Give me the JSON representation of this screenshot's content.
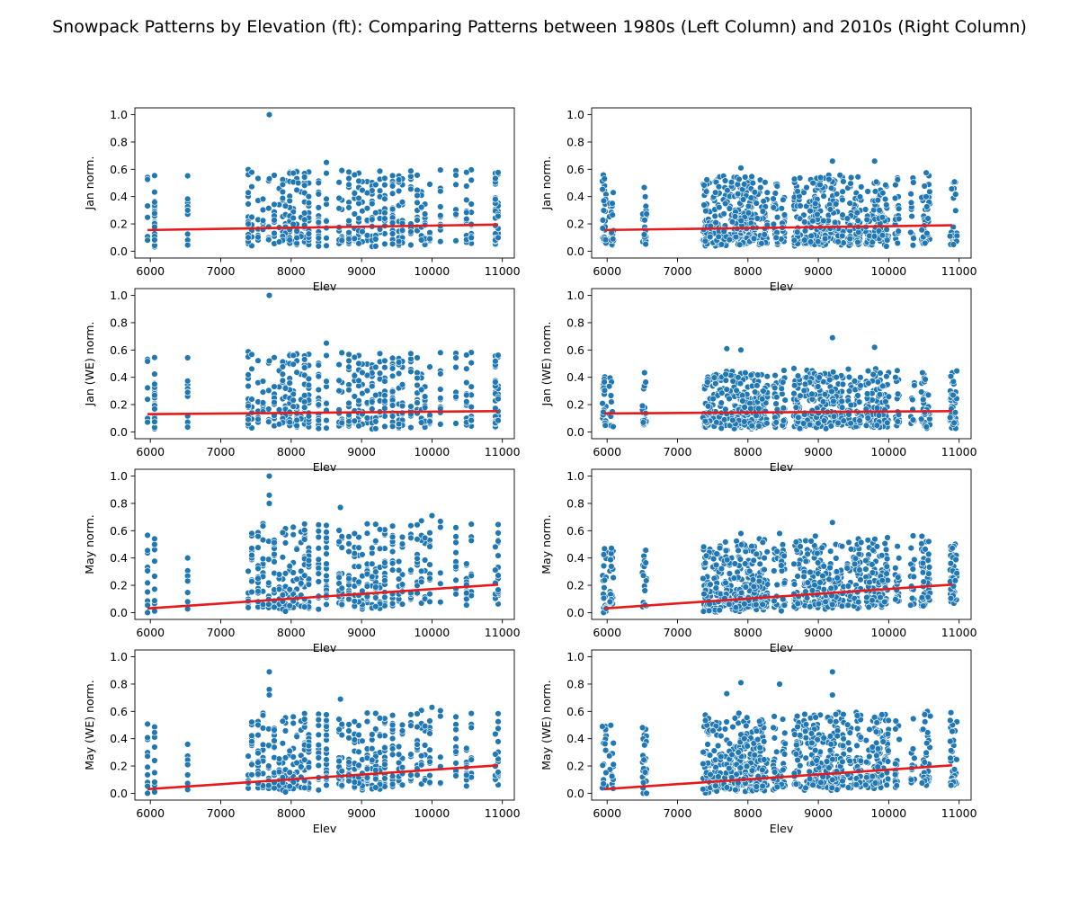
{
  "title": "Snowpack Patterns by Elevation (ft): Comparing Patterns between 1980s (Left Column) and 2010s (Right Column)",
  "colors": {
    "points": "#1f77b4",
    "fit_line": "#e41a1c",
    "point_edge": "#ffffff"
  },
  "chart_data": [
    {
      "id": "r0c0",
      "type": "scatter",
      "row": 0,
      "col": 0,
      "xlabel": "Elev",
      "ylabel": "Jan norm.",
      "xlim": [
        5780,
        11170
      ],
      "ylim": [
        -0.05,
        1.05
      ],
      "xticks": [
        "6000",
        "7000",
        "8000",
        "9000",
        "10000",
        "11000"
      ],
      "yticks": [
        "0.0",
        "0.2",
        "0.4",
        "0.6",
        "0.8",
        "1.0"
      ],
      "fit_line": [
        [
          5960,
          0.155
        ],
        [
          10940,
          0.195
        ]
      ],
      "n_points": 520,
      "seed": 11,
      "y_scale": 0.24,
      "y_cap": 0.66,
      "outliers": [
        [
          7690,
          1.0
        ],
        [
          7690,
          0.53
        ],
        [
          8500,
          0.65
        ],
        [
          8100,
          0.5
        ]
      ]
    },
    {
      "id": "r0c1",
      "type": "scatter",
      "row": 0,
      "col": 1,
      "xlabel": "Elev",
      "ylabel": "Jan norm.",
      "xlim": [
        5780,
        11170
      ],
      "ylim": [
        -0.05,
        1.05
      ],
      "xticks": [
        "6000",
        "7000",
        "8000",
        "9000",
        "10000",
        "11000"
      ],
      "yticks": [
        "0.0",
        "0.2",
        "0.4",
        "0.6",
        "0.8",
        "1.0"
      ],
      "fit_line": [
        [
          5960,
          0.155
        ],
        [
          10900,
          0.19
        ]
      ],
      "n_points": 900,
      "seed": 23,
      "y_scale": 0.22,
      "y_cap": 0.67,
      "outliers": [
        [
          9200,
          0.66
        ],
        [
          9800,
          0.66
        ],
        [
          7900,
          0.61
        ]
      ]
    },
    {
      "id": "r1c0",
      "type": "scatter",
      "row": 1,
      "col": 0,
      "xlabel": "Elev",
      "ylabel": "Jan (WE) norm.",
      "xlim": [
        5780,
        11170
      ],
      "ylim": [
        -0.05,
        1.05
      ],
      "xticks": [
        "6000",
        "7000",
        "8000",
        "9000",
        "10000",
        "11000"
      ],
      "yticks": [
        "0.0",
        "0.2",
        "0.4",
        "0.6",
        "0.8",
        "1.0"
      ],
      "fit_line": [
        [
          5960,
          0.13
        ],
        [
          10940,
          0.152
        ]
      ],
      "n_points": 520,
      "seed": 11,
      "y_scale": 0.24,
      "y_cap": 0.66,
      "outliers": [
        [
          7690,
          1.0
        ],
        [
          7690,
          0.52
        ],
        [
          8500,
          0.65
        ]
      ]
    },
    {
      "id": "r1c1",
      "type": "scatter",
      "row": 1,
      "col": 1,
      "xlabel": "Elev",
      "ylabel": "Jan (WE) norm.",
      "xlim": [
        5780,
        11170
      ],
      "ylim": [
        -0.05,
        1.05
      ],
      "xticks": [
        "6000",
        "7000",
        "8000",
        "9000",
        "10000",
        "11000"
      ],
      "yticks": [
        "0.0",
        "0.2",
        "0.4",
        "0.6",
        "0.8",
        "1.0"
      ],
      "fit_line": [
        [
          5960,
          0.135
        ],
        [
          10900,
          0.152
        ]
      ],
      "n_points": 900,
      "seed": 37,
      "y_scale": 0.18,
      "y_cap": 0.62,
      "outliers": [
        [
          9200,
          0.69
        ],
        [
          7700,
          0.61
        ],
        [
          7900,
          0.6
        ],
        [
          9800,
          0.62
        ]
      ]
    },
    {
      "id": "r2c0",
      "type": "scatter",
      "row": 2,
      "col": 0,
      "xlabel": "Elev",
      "ylabel": "May norm.",
      "xlim": [
        5780,
        11170
      ],
      "ylim": [
        -0.05,
        1.05
      ],
      "xticks": [
        "6000",
        "7000",
        "8000",
        "9000",
        "10000",
        "11000"
      ],
      "yticks": [
        "0.0",
        "0.2",
        "0.4",
        "0.6",
        "0.8",
        "1.0"
      ],
      "fit_line": [
        [
          5960,
          0.03
        ],
        [
          10940,
          0.205
        ]
      ],
      "n_points": 520,
      "seed": 51,
      "y_scale": 0.28,
      "y_cap": 0.72,
      "outliers": [
        [
          7690,
          1.0
        ],
        [
          7690,
          0.86
        ],
        [
          7690,
          0.8
        ],
        [
          8700,
          0.77
        ],
        [
          10000,
          0.71
        ]
      ]
    },
    {
      "id": "r2c1",
      "type": "scatter",
      "row": 2,
      "col": 1,
      "xlabel": "Elev",
      "ylabel": "May norm.",
      "xlim": [
        5780,
        11170
      ],
      "ylim": [
        -0.05,
        1.05
      ],
      "xticks": [
        "6000",
        "7000",
        "8000",
        "9000",
        "10000",
        "11000"
      ],
      "yticks": [
        "0.0",
        "0.2",
        "0.4",
        "0.6",
        "0.8",
        "1.0"
      ],
      "fit_line": [
        [
          5960,
          0.03
        ],
        [
          10900,
          0.205
        ]
      ],
      "n_points": 900,
      "seed": 63,
      "y_scale": 0.22,
      "y_cap": 0.6,
      "outliers": [
        [
          9200,
          0.66
        ],
        [
          7900,
          0.58
        ],
        [
          8450,
          0.58
        ]
      ]
    },
    {
      "id": "r3c0",
      "type": "scatter",
      "row": 3,
      "col": 0,
      "xlabel": "Elev",
      "ylabel": "May (WE) norm.",
      "xlim": [
        5780,
        11170
      ],
      "ylim": [
        -0.05,
        1.05
      ],
      "xticks": [
        "6000",
        "7000",
        "8000",
        "9000",
        "10000",
        "11000"
      ],
      "yticks": [
        "0.0",
        "0.2",
        "0.4",
        "0.6",
        "0.8",
        "1.0"
      ],
      "fit_line": [
        [
          5960,
          0.03
        ],
        [
          10940,
          0.205
        ]
      ],
      "n_points": 520,
      "seed": 51,
      "y_scale": 0.25,
      "y_cap": 0.64,
      "outliers": [
        [
          7690,
          0.89
        ],
        [
          7690,
          0.76
        ],
        [
          7690,
          0.72
        ],
        [
          8700,
          0.69
        ],
        [
          10000,
          0.63
        ]
      ]
    },
    {
      "id": "r3c1",
      "type": "scatter",
      "row": 3,
      "col": 1,
      "xlabel": "Elev",
      "ylabel": "May (WE) norm.",
      "xlim": [
        5780,
        11170
      ],
      "ylim": [
        -0.05,
        1.05
      ],
      "xticks": [
        "6000",
        "7000",
        "8000",
        "9000",
        "10000",
        "11000"
      ],
      "yticks": [
        "0.0",
        "0.2",
        "0.4",
        "0.6",
        "0.8",
        "1.0"
      ],
      "fit_line": [
        [
          5960,
          0.03
        ],
        [
          10900,
          0.205
        ]
      ],
      "n_points": 900,
      "seed": 77,
      "y_scale": 0.24,
      "y_cap": 0.6,
      "outliers": [
        [
          9200,
          0.89
        ],
        [
          7900,
          0.81
        ],
        [
          7700,
          0.73
        ],
        [
          8450,
          0.8
        ],
        [
          9200,
          0.72
        ]
      ]
    }
  ]
}
